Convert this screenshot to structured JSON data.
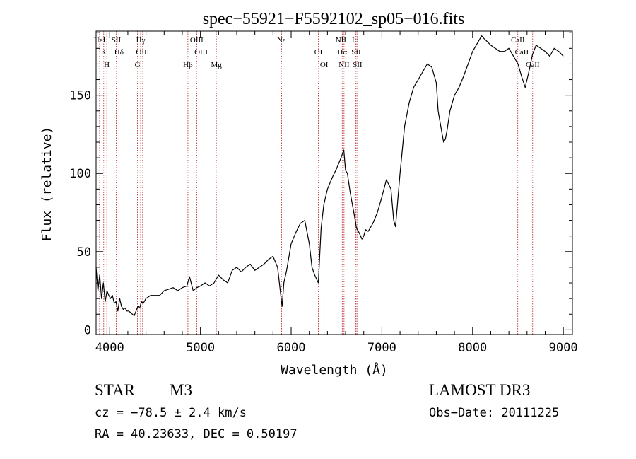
{
  "title": "spec−55921−F5592102_sp05−016.fits",
  "xlabel": "Wavelength (Å)",
  "ylabel": "Flux (relative)",
  "info": {
    "object_class": "STAR",
    "subclass": "M3",
    "survey": "LAMOST DR3",
    "cz": "cz = −78.5 ± 2.4 km/s",
    "obs_date": "Obs−Date: 20111225",
    "radec": "RA =  40.23633, DEC =    0.50197"
  },
  "chart_data": {
    "type": "line",
    "xlim": [
      3850,
      9100
    ],
    "ylim": [
      -3,
      191
    ],
    "x_ticks": [
      4000,
      5000,
      6000,
      7000,
      8000,
      9000
    ],
    "y_ticks": [
      0,
      50,
      100,
      150
    ],
    "series": [
      {
        "x": [
          3850,
          3870,
          3890,
          3910,
          3930,
          3950,
          3970,
          3990,
          4010,
          4030,
          4050,
          4070,
          4090,
          4110,
          4130,
          4150,
          4170,
          4190,
          4210,
          4230,
          4250,
          4270,
          4290,
          4310,
          4330,
          4350,
          4370,
          4400,
          4450,
          4500,
          4550,
          4600,
          4650,
          4700,
          4750,
          4800,
          4850,
          4880,
          4920,
          4960,
          5000,
          5050,
          5100,
          5150,
          5200,
          5250,
          5300,
          5350,
          5400,
          5450,
          5500,
          5550,
          5600,
          5650,
          5700,
          5750,
          5800,
          5850,
          5880,
          5900,
          5920,
          5950,
          6000,
          6050,
          6100,
          6150,
          6200,
          6230,
          6260,
          6300,
          6330,
          6360,
          6400,
          6450,
          6500,
          6550,
          6580,
          6600,
          6620,
          6650,
          6700,
          6720,
          6750,
          6780,
          6800,
          6820,
          6850,
          6900,
          6950,
          7000,
          7050,
          7100,
          7130,
          7150,
          7200,
          7250,
          7300,
          7350,
          7400,
          7450,
          7500,
          7550,
          7600,
          7620,
          7650,
          7680,
          7700,
          7720,
          7750,
          7800,
          7850,
          7900,
          7950,
          8000,
          8050,
          8100,
          8130,
          8150,
          8200,
          8250,
          8300,
          8350,
          8400,
          8450,
          8500,
          8540,
          8580,
          8620,
          8660,
          8700,
          8750,
          8800,
          8850,
          8900,
          8950,
          9000
        ],
        "y": [
          40,
          25,
          35,
          20,
          30,
          18,
          25,
          22,
          20,
          22,
          17,
          18,
          12,
          20,
          15,
          13,
          14,
          12,
          12,
          11,
          10,
          9,
          12,
          15,
          14,
          18,
          17,
          20,
          22,
          22,
          22,
          25,
          26,
          27,
          25,
          27,
          28,
          34,
          25,
          27,
          28,
          30,
          28,
          30,
          35,
          32,
          30,
          38,
          40,
          37,
          40,
          42,
          38,
          40,
          42,
          45,
          47,
          40,
          25,
          15,
          30,
          38,
          55,
          62,
          68,
          70,
          55,
          40,
          35,
          30,
          65,
          80,
          90,
          97,
          103,
          110,
          115,
          102,
          100,
          88,
          72,
          65,
          62,
          58,
          60,
          64,
          63,
          68,
          75,
          85,
          96,
          90,
          70,
          66,
          100,
          130,
          145,
          155,
          160,
          165,
          170,
          168,
          158,
          140,
          130,
          120,
          122,
          128,
          140,
          150,
          155,
          162,
          170,
          178,
          183,
          188,
          186,
          185,
          182,
          180,
          178,
          178,
          180,
          175,
          170,
          162,
          155,
          165,
          176,
          182,
          180,
          178,
          175,
          180,
          178,
          175
        ]
      }
    ],
    "lines": [
      {
        "name": "HeI",
        "x": 3889
      },
      {
        "name": "K",
        "x": 3934
      },
      {
        "name": "H",
        "x": 3968
      },
      {
        "name": "SII",
        "x": 4072
      },
      {
        "name": "Hδ",
        "x": 4102
      },
      {
        "name": "G",
        "x": 4306
      },
      {
        "name": "Hγ",
        "x": 4341
      },
      {
        "name": "OIII",
        "x": 4363
      },
      {
        "name": "Hβ",
        "x": 4862
      },
      {
        "name": "OIII",
        "x": 4959
      },
      {
        "name": "OIII",
        "x": 5007
      },
      {
        "name": "Mg",
        "x": 5175
      },
      {
        "name": "Na",
        "x": 5894
      },
      {
        "name": "OI",
        "x": 6300
      },
      {
        "name": "OI",
        "x": 6363
      },
      {
        "name": "NII",
        "x": 6548
      },
      {
        "name": "Hα",
        "x": 6563
      },
      {
        "name": "NII",
        "x": 6583
      },
      {
        "name": "Li",
        "x": 6708
      },
      {
        "name": "SII",
        "x": 6716
      },
      {
        "name": "SII",
        "x": 6731
      },
      {
        "name": "CaII",
        "x": 8498
      },
      {
        "name": "CaII",
        "x": 8542
      },
      {
        "name": "CaII",
        "x": 8662
      }
    ]
  }
}
